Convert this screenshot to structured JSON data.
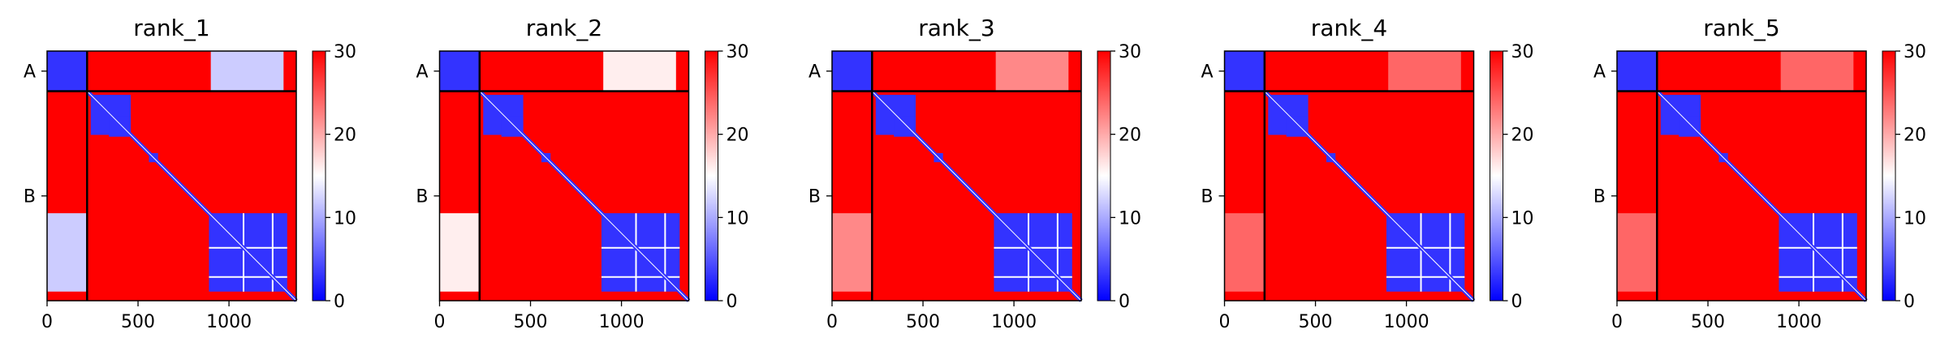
{
  "chart_data": [
    {
      "type": "heatmap",
      "title": "rank_1",
      "x_ticks": [
        0,
        500,
        1000
      ],
      "y_tick_labels": [
        "A",
        "B"
      ],
      "x_range": [
        0,
        1370
      ],
      "chain_boundary": 220,
      "colorbar": {
        "ticks": [
          0,
          10,
          20,
          30
        ],
        "range": [
          0,
          30
        ],
        "colormap": "bwr"
      },
      "pae_high_region_value": 30,
      "pae_low_region_value": 3,
      "chain_a_b_offdiag_value": 12
    },
    {
      "type": "heatmap",
      "title": "rank_2",
      "x_ticks": [
        0,
        500,
        1000
      ],
      "y_tick_labels": [
        "A",
        "B"
      ],
      "x_range": [
        0,
        1370
      ],
      "chain_boundary": 220,
      "colorbar": {
        "ticks": [
          0,
          10,
          20,
          30
        ],
        "range": [
          0,
          30
        ],
        "colormap": "bwr"
      },
      "pae_high_region_value": 30,
      "pae_low_region_value": 3,
      "chain_a_b_offdiag_value": 16
    },
    {
      "type": "heatmap",
      "title": "rank_3",
      "x_ticks": [
        0,
        500,
        1000
      ],
      "y_tick_labels": [
        "A",
        "B"
      ],
      "x_range": [
        0,
        1370
      ],
      "chain_boundary": 220,
      "colorbar": {
        "ticks": [
          0,
          10,
          20,
          30
        ],
        "range": [
          0,
          30
        ],
        "colormap": "bwr"
      },
      "pae_high_region_value": 30,
      "pae_low_region_value": 3,
      "chain_a_b_offdiag_value": 22
    },
    {
      "type": "heatmap",
      "title": "rank_4",
      "x_ticks": [
        0,
        500,
        1000
      ],
      "y_tick_labels": [
        "A",
        "B"
      ],
      "x_range": [
        0,
        1370
      ],
      "chain_boundary": 220,
      "colorbar": {
        "ticks": [
          0,
          10,
          20,
          30
        ],
        "range": [
          0,
          30
        ],
        "colormap": "bwr"
      },
      "pae_high_region_value": 30,
      "pae_low_region_value": 3,
      "chain_a_b_offdiag_value": 24
    },
    {
      "type": "heatmap",
      "title": "rank_5",
      "x_ticks": [
        0,
        500,
        1000
      ],
      "y_tick_labels": [
        "A",
        "B"
      ],
      "x_range": [
        0,
        1370
      ],
      "chain_boundary": 220,
      "colorbar": {
        "ticks": [
          0,
          10,
          20,
          30
        ],
        "range": [
          0,
          30
        ],
        "colormap": "bwr"
      },
      "pae_high_region_value": 30,
      "pae_low_region_value": 3,
      "chain_a_b_offdiag_value": 24
    }
  ],
  "colors": {
    "high": "#ff0000",
    "mid": "#ffffff",
    "low": "#0000ff",
    "frame": "#000000"
  }
}
